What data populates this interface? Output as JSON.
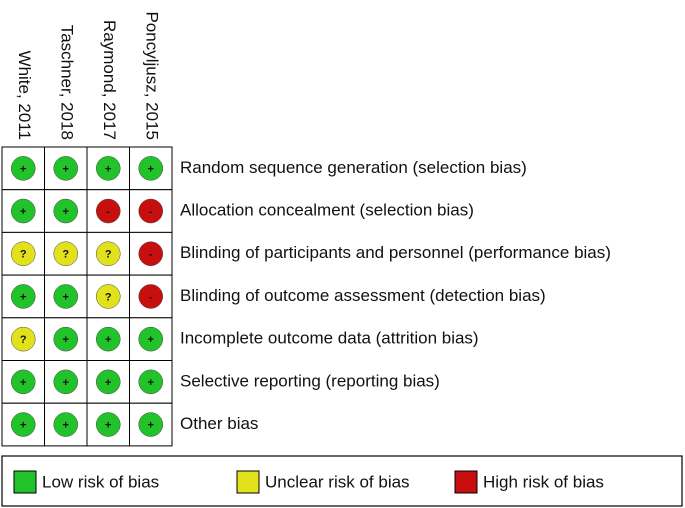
{
  "studies": [
    "White, 2011",
    "Taschner, 2018",
    "Raymond, 2017",
    "Poncyljusz, 2015"
  ],
  "rows": [
    {
      "label": "Random sequence generation (selection bias)",
      "cells": [
        {
          "mark": "+",
          "color": "#22c22a"
        },
        {
          "mark": "+",
          "color": "#22c22a"
        },
        {
          "mark": "+",
          "color": "#22c22a"
        },
        {
          "mark": "+",
          "color": "#22c22a"
        }
      ]
    },
    {
      "label": "Allocation concealment (selection bias)",
      "cells": [
        {
          "mark": "+",
          "color": "#22c22a"
        },
        {
          "mark": "+",
          "color": "#22c22a"
        },
        {
          "mark": "-",
          "color": "#c80f0f"
        },
        {
          "mark": "-",
          "color": "#c80f0f"
        }
      ]
    },
    {
      "label": "Blinding of participants and personnel (performance bias)",
      "cells": [
        {
          "mark": "?",
          "color": "#e2e21c"
        },
        {
          "mark": "?",
          "color": "#e2e21c"
        },
        {
          "mark": "?",
          "color": "#e2e21c"
        },
        {
          "mark": "-",
          "color": "#c80f0f"
        }
      ]
    },
    {
      "label": "Blinding of outcome assessment (detection bias)",
      "cells": [
        {
          "mark": "+",
          "color": "#22c22a"
        },
        {
          "mark": "+",
          "color": "#22c22a"
        },
        {
          "mark": "?",
          "color": "#e2e21c"
        },
        {
          "mark": "-",
          "color": "#c80f0f"
        }
      ]
    },
    {
      "label": "Incomplete outcome data (attrition bias)",
      "cells": [
        {
          "mark": "?",
          "color": "#e2e21c"
        },
        {
          "mark": "+",
          "color": "#22c22a"
        },
        {
          "mark": "+",
          "color": "#22c22a"
        },
        {
          "mark": "+",
          "color": "#22c22a"
        }
      ]
    },
    {
      "label": "Selective reporting (reporting bias)",
      "cells": [
        {
          "mark": "+",
          "color": "#22c22a"
        },
        {
          "mark": "+",
          "color": "#22c22a"
        },
        {
          "mark": "+",
          "color": "#22c22a"
        },
        {
          "mark": "+",
          "color": "#22c22a"
        }
      ]
    },
    {
      "label": "Other bias",
      "cells": [
        {
          "mark": "+",
          "color": "#22c22a"
        },
        {
          "mark": "+",
          "color": "#22c22a"
        },
        {
          "mark": "+",
          "color": "#22c22a"
        },
        {
          "mark": "+",
          "color": "#22c22a"
        }
      ]
    }
  ],
  "legend": [
    {
      "label": "Low risk of bias",
      "color": "#22c22a"
    },
    {
      "label": "Unclear risk of bias",
      "color": "#e2e21c"
    },
    {
      "label": "High risk of bias",
      "color": "#c80f0f"
    }
  ]
}
